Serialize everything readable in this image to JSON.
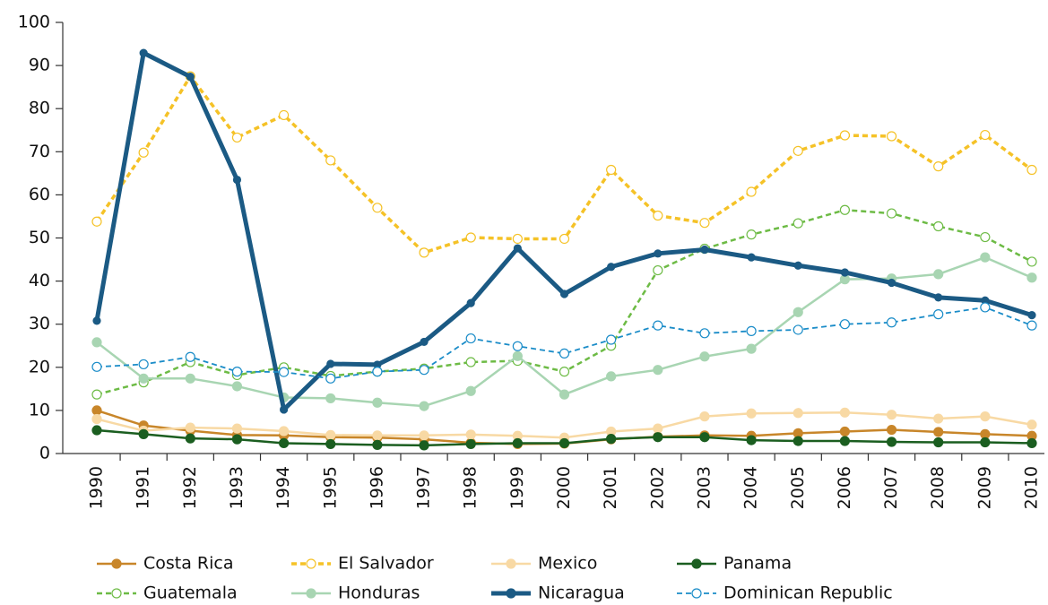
{
  "chart_data": {
    "type": "line",
    "categories": [
      "1990",
      "1991",
      "1992",
      "1993",
      "1994",
      "1995",
      "1996",
      "1997",
      "1998",
      "1999",
      "2000",
      "2001",
      "2002",
      "2003",
      "2004",
      "2005",
      "2006",
      "2007",
      "2008",
      "2009",
      "2010"
    ],
    "ylim": [
      0,
      100
    ],
    "yticks": [
      0,
      10,
      20,
      30,
      40,
      50,
      60,
      70,
      80,
      90,
      100
    ],
    "series": [
      {
        "name": "Costa Rica",
        "color": "#c8862a",
        "line_style": "solid",
        "marker_fill": "filled",
        "linewidth": 2.5,
        "values": [
          10,
          6.5,
          5.3,
          4.3,
          4.2,
          3.8,
          3.7,
          3.3,
          2.5,
          2.2,
          2.3,
          3.3,
          3.9,
          4.2,
          4.1,
          4.7,
          5.1,
          5.5,
          5,
          4.5,
          4.1
        ]
      },
      {
        "name": "El Salvador",
        "color": "#f5c227",
        "line_style": "dashed",
        "marker_fill": "open",
        "linewidth": 3.5,
        "values": [
          53.8,
          69.8,
          87.5,
          73.3,
          78.5,
          68,
          57,
          46.6,
          50.1,
          49.8,
          49.8,
          65.8,
          55.2,
          53.5,
          60.7,
          70.2,
          73.8,
          73.6,
          66.6,
          73.9,
          65.8
        ]
      },
      {
        "name": "Mexico",
        "color": "#f8d9a4",
        "line_style": "solid",
        "marker_fill": "filled",
        "linewidth": 2.5,
        "values": [
          8,
          5.3,
          6,
          5.8,
          5.2,
          4.3,
          4.2,
          4.2,
          4.4,
          4.1,
          3.7,
          5.1,
          5.8,
          8.6,
          9.3,
          9.4,
          9.5,
          9,
          8.1,
          8.6,
          6.7
        ]
      },
      {
        "name": "Panama",
        "color": "#1b5e20",
        "line_style": "solid",
        "marker_fill": "filled",
        "linewidth": 2.5,
        "values": [
          5.4,
          4.5,
          3.5,
          3.3,
          2.4,
          2.2,
          2,
          1.9,
          2.2,
          2.4,
          2.4,
          3.4,
          3.8,
          3.8,
          3.1,
          2.9,
          2.9,
          2.7,
          2.6,
          2.6,
          2.4
        ]
      },
      {
        "name": "Guatemala",
        "color": "#6dbb45",
        "line_style": "dashed",
        "marker_fill": "open",
        "linewidth": 2.5,
        "values": [
          13.7,
          16.5,
          21.2,
          18.2,
          20,
          18,
          19,
          19.7,
          21.2,
          21.5,
          19,
          25,
          42.5,
          47.5,
          50.8,
          53.4,
          56.5,
          55.7,
          52.7,
          50.2,
          44.5
        ]
      },
      {
        "name": "Honduras",
        "color": "#a8d5b2",
        "line_style": "solid",
        "marker_fill": "filled",
        "linewidth": 2.5,
        "values": [
          25.8,
          17.4,
          17.4,
          15.6,
          13,
          12.8,
          11.8,
          11,
          14.5,
          22.6,
          13.7,
          17.9,
          19.4,
          22.5,
          24.3,
          32.8,
          40.4,
          40.6,
          41.6,
          45.5,
          40.8
        ]
      },
      {
        "name": "Nicaragua",
        "color": "#1b5a84",
        "line_style": "solid",
        "marker_fill": "filled",
        "linewidth": 5,
        "values": [
          30.8,
          92.9,
          87.4,
          63.5,
          10.2,
          20.8,
          20.6,
          25.9,
          34.9,
          47.6,
          37,
          43.3,
          46.4,
          47.3,
          45.5,
          43.6,
          42,
          39.6,
          36.2,
          35.5,
          32.1
        ]
      },
      {
        "name": "Dominican Republic",
        "color": "#1a8cc8",
        "line_style": "dashed",
        "marker_fill": "open",
        "linewidth": 1.8,
        "values": [
          20.1,
          20.7,
          22.4,
          19,
          18.9,
          17.4,
          19,
          19.4,
          26.7,
          24.9,
          23.2,
          26.4,
          29.7,
          27.9,
          28.4,
          28.7,
          30,
          30.4,
          32.3,
          33.9,
          29.7
        ]
      }
    ]
  }
}
